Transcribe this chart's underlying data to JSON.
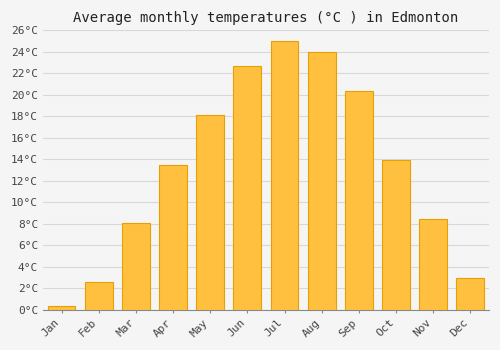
{
  "title": "Average monthly temperatures (°C ) in Edmonton",
  "months": [
    "Jan",
    "Feb",
    "Mar",
    "Apr",
    "May",
    "Jun",
    "Jul",
    "Aug",
    "Sep",
    "Oct",
    "Nov",
    "Dec"
  ],
  "values": [
    0.4,
    2.6,
    8.1,
    13.5,
    18.1,
    22.7,
    25.0,
    24.0,
    20.4,
    13.9,
    8.5,
    3.0
  ],
  "bar_color": "#FFC040",
  "bar_edge_color": "#E8A000",
  "ylim": [
    0,
    26
  ],
  "ytick_step": 2,
  "background_color": "#f5f5f5",
  "plot_bg_color": "#f5f5f5",
  "grid_color": "#d8d8d8",
  "title_fontsize": 10,
  "tick_fontsize": 8,
  "font_family": "monospace"
}
